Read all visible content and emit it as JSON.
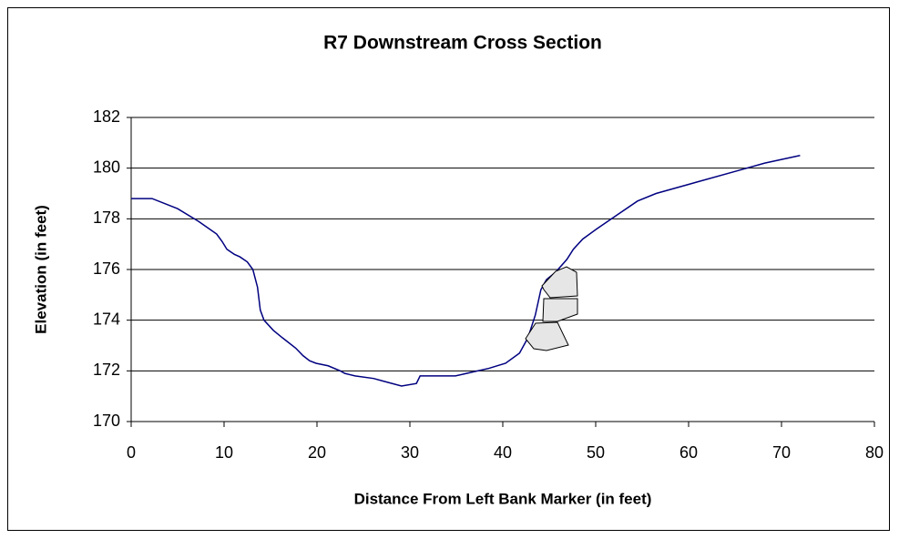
{
  "chart_data": {
    "type": "line",
    "title": "R7 Downstream Cross Section",
    "x_label": "Distance From Left Bank Marker (in feet)",
    "y_label": "Elevation (in feet)",
    "x": [
      0,
      2.25,
      5,
      7.25,
      9.2,
      9.8,
      10.3,
      11.1,
      11.7,
      12.5,
      13.1,
      13.6,
      13.9,
      14.3,
      15.3,
      16.3,
      17.7,
      18.5,
      19.2,
      19.9,
      21.2,
      22.5,
      23,
      24.1,
      26.1,
      27.1,
      29.1,
      30.7,
      31.1,
      34.9,
      38.5,
      40.3,
      41.8,
      42.7,
      43.5,
      44.1,
      44.7,
      45.7,
      46.9,
      47.6,
      48.6,
      50.1,
      52.1,
      54.5,
      56.5,
      60.4,
      65.3,
      68.2,
      72
    ],
    "series": [
      {
        "color": "#000080",
        "values": [
          178.8,
          178.8,
          178.4,
          177.9,
          177.4,
          177.1,
          176.8,
          176.6,
          176.5,
          176.3,
          176.0,
          175.3,
          174.4,
          174.0,
          173.6,
          173.3,
          172.9,
          172.6,
          172.4,
          172.3,
          172.2,
          172.0,
          171.9,
          171.8,
          171.7,
          171.6,
          171.4,
          171.5,
          171.8,
          171.8,
          172.1,
          172.3,
          172.7,
          173.3,
          174.2,
          175.2,
          175.6,
          175.9,
          176.4,
          176.8,
          177.2,
          177.6,
          178.1,
          178.7,
          179.0,
          179.4,
          179.9,
          180.2,
          180.5
        ]
      }
    ],
    "xlim": [
      0,
      80
    ],
    "xticks": [
      0,
      10,
      20,
      30,
      40,
      50,
      60,
      70,
      80
    ],
    "ylim": [
      170,
      182
    ],
    "yticks": [
      170,
      172,
      174,
      176,
      178,
      180,
      182
    ],
    "grid": true
  }
}
